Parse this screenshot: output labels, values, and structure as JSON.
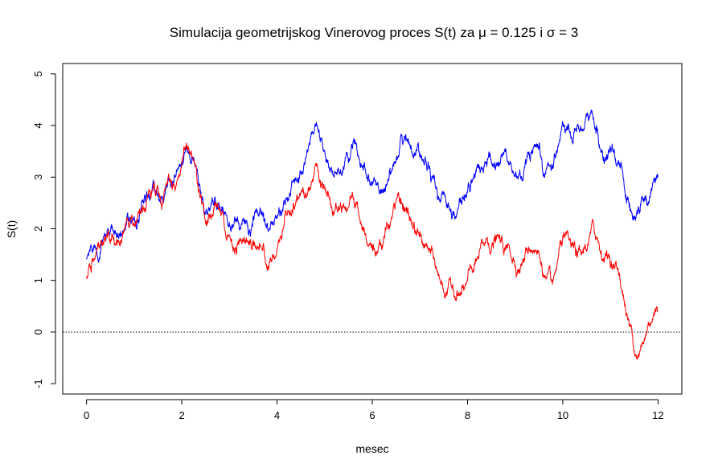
{
  "chart_data": {
    "type": "line",
    "title": "Simulacija geometrijskog Vinerovog proces S(t) za μ = 0.125 i σ = 3",
    "xlabel": "mesec",
    "ylabel": "S(t)",
    "xlim": [
      -0.5,
      12.5
    ],
    "ylim": [
      -1.2,
      5.2
    ],
    "x_ticks": [
      "0",
      "2",
      "4",
      "6",
      "8",
      "10",
      "12"
    ],
    "y_ticks": [
      "-1",
      "0",
      "1",
      "2",
      "3",
      "4",
      "5"
    ],
    "grid": false,
    "reference_line": {
      "y": 0,
      "style": "dotted",
      "color": "#000000"
    },
    "series": [
      {
        "color": "#0000ff",
        "x": [
          0,
          0.2,
          0.4,
          0.6,
          0.8,
          1.0,
          1.2,
          1.4,
          1.6,
          1.8,
          2.0,
          2.1,
          2.3,
          2.5,
          2.7,
          2.9,
          3.1,
          3.3,
          3.5,
          3.7,
          3.9,
          4.1,
          4.3,
          4.5,
          4.8,
          5.0,
          5.2,
          5.4,
          5.6,
          5.8,
          6.0,
          6.2,
          6.4,
          6.6,
          6.8,
          7.0,
          7.2,
          7.4,
          7.6,
          7.8,
          8.0,
          8.2,
          8.4,
          8.6,
          8.8,
          9.0,
          9.2,
          9.4,
          9.6,
          9.8,
          10.0,
          10.2,
          10.4,
          10.6,
          10.8,
          11.0,
          11.2,
          11.4,
          11.5,
          11.7,
          11.9,
          12.0
        ],
        "y": [
          1.4,
          1.6,
          1.9,
          1.9,
          2.0,
          2.2,
          2.5,
          2.9,
          2.6,
          2.9,
          3.3,
          3.6,
          3.2,
          2.3,
          2.6,
          2.3,
          2.1,
          2.2,
          2.2,
          2.3,
          2.1,
          2.3,
          2.8,
          3.1,
          4.0,
          3.5,
          3.0,
          3.2,
          3.7,
          3.2,
          2.9,
          2.7,
          3.1,
          3.8,
          3.6,
          3.4,
          3.2,
          2.6,
          2.5,
          2.4,
          2.7,
          3.2,
          3.3,
          3.2,
          3.5,
          3.0,
          3.2,
          3.6,
          3.0,
          3.2,
          4.1,
          3.7,
          3.9,
          4.3,
          3.5,
          3.6,
          3.2,
          2.4,
          2.2,
          2.6,
          2.9,
          3.0
        ]
      },
      {
        "color": "#ff0000",
        "x": [
          0,
          0.2,
          0.4,
          0.6,
          0.8,
          1.0,
          1.2,
          1.4,
          1.6,
          1.8,
          2.0,
          2.1,
          2.3,
          2.5,
          2.7,
          2.9,
          3.1,
          3.3,
          3.5,
          3.7,
          3.9,
          4.1,
          4.3,
          4.5,
          4.8,
          5.0,
          5.2,
          5.4,
          5.6,
          5.8,
          6.0,
          6.2,
          6.4,
          6.6,
          6.8,
          7.0,
          7.2,
          7.4,
          7.6,
          7.8,
          8.0,
          8.2,
          8.4,
          8.6,
          8.8,
          9.0,
          9.2,
          9.4,
          9.6,
          9.8,
          10.0,
          10.2,
          10.4,
          10.6,
          10.8,
          11.0,
          11.2,
          11.4,
          11.5,
          11.7,
          11.9,
          12.0
        ],
        "y": [
          1.0,
          1.5,
          1.8,
          1.7,
          2.0,
          2.1,
          2.4,
          2.8,
          2.5,
          2.8,
          3.2,
          3.6,
          3.2,
          2.1,
          2.5,
          2.0,
          1.6,
          1.8,
          1.7,
          1.6,
          1.4,
          1.8,
          2.3,
          2.7,
          3.2,
          2.8,
          2.3,
          2.5,
          2.6,
          2.0,
          1.7,
          1.6,
          2.2,
          2.6,
          2.2,
          1.9,
          1.6,
          1.1,
          0.9,
          0.7,
          1.0,
          1.4,
          1.8,
          1.8,
          1.6,
          1.3,
          1.4,
          1.6,
          1.1,
          1.0,
          1.8,
          1.7,
          1.5,
          2.0,
          1.5,
          1.3,
          1.1,
          0.1,
          -0.4,
          -0.2,
          0.3,
          0.4
        ]
      }
    ]
  }
}
